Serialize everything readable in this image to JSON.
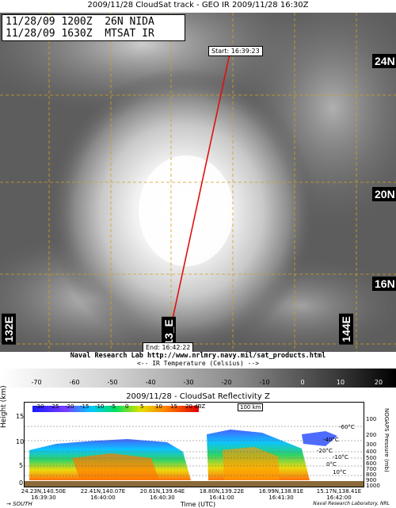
{
  "header": {
    "title": "2009/11/28 CloudSat track - GEO IR  2009/11/28 16:30Z"
  },
  "info_box": {
    "line1": "11/28/09 1200Z  26N NIDA",
    "line2": "11/28/09 1630Z  MTSAT IR"
  },
  "map": {
    "lat_labels": [
      {
        "text": "24N",
        "style": "black-box"
      },
      {
        "text": "20N",
        "style": "black-box"
      },
      {
        "text": "16N",
        "style": "black-box"
      }
    ],
    "lon_labels": [
      {
        "text": "132E"
      },
      {
        "text": "13_E"
      },
      {
        "text": "144E"
      }
    ],
    "track_start": "Start: 16:39:23",
    "track_end": "End: 16:42:22",
    "track_color": "#e01010",
    "grid_color": "#d4a020"
  },
  "credit": "Naval Research Lab http://www.nrlmry.navy.mil/sat_products.html",
  "ir_colorbar": {
    "label": "<-- IR Temperature (Celsius) -->",
    "ticks": [
      "-70",
      "-60",
      "-50",
      "-40",
      "-30",
      "-20",
      "-10",
      "0",
      "10",
      "20"
    ]
  },
  "cloudsat": {
    "title": "2009/11/28 - CloudSat Reflectivity Z",
    "dbz_ticks": [
      "-30",
      "-25",
      "-20",
      "-15",
      "-10",
      "-5",
      "0",
      "5",
      "10",
      "15",
      "20 dBZ"
    ],
    "km_bar": "100 km",
    "ylabel": "Height (km)",
    "yticks": [
      "15",
      "10",
      "5",
      "0"
    ],
    "right_label": "NOGAPS Pressure (mb)",
    "pressure_ticks": [
      "100",
      "200",
      "300",
      "400",
      "500",
      "600",
      "700",
      "800",
      "900",
      "1000"
    ],
    "iso_labels": [
      "-60°C",
      "-40°C",
      "-20°C",
      "-10°C",
      "0°C",
      "10°C"
    ],
    "xticks": [
      {
        "pos": "24.23N,140.50E",
        "time": "16:39:30"
      },
      {
        "pos": "22.41N,140.07E",
        "time": "16:40:00"
      },
      {
        "pos": "20.61N,139.64E",
        "time": "16:40:30"
      },
      {
        "pos": "18.80N,139.22E",
        "time": "16:41:00"
      },
      {
        "pos": "16.99N,138.81E",
        "time": "16:41:30"
      },
      {
        "pos": "15.17N,138.41E",
        "time": "16:42:00"
      }
    ],
    "xlabel": "Time (UTC)",
    "south_label": "SOUTH",
    "nrl_credit": "Naval Research Laboratory, NRL"
  }
}
